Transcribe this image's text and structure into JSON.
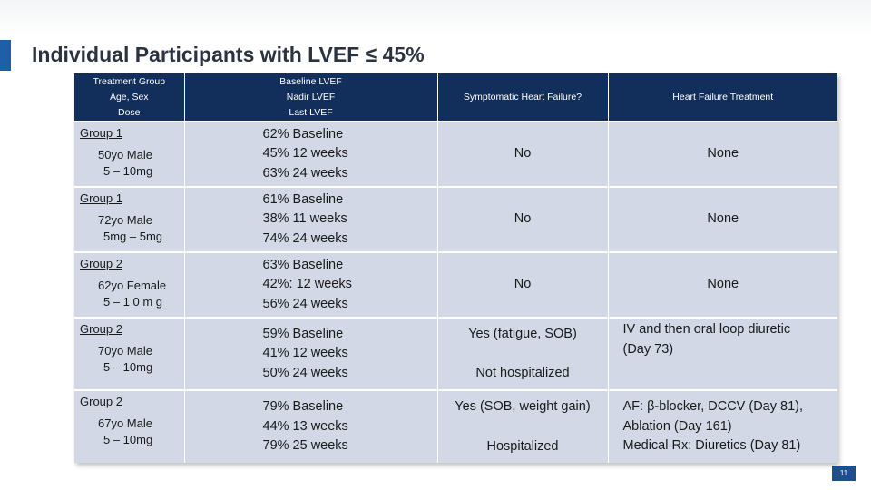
{
  "title": "Individual Participants with LVEF ≤ 45%",
  "accent_color": "#1f5fa8",
  "header_color": "#122e5a",
  "row_color": "#d2d8e5",
  "headers": {
    "col1": [
      "Treatment Group",
      "Age, Sex",
      "Dose"
    ],
    "col2": [
      "Baseline LVEF",
      "Nadir LVEF",
      "Last LVEF"
    ],
    "col3": "Symptomatic Heart Failure?",
    "col4": "Heart Failure Treatment"
  },
  "rows": [
    {
      "group": "Group 1",
      "demo": "50yo Male",
      "dose": "5 – 10mg",
      "lvef": [
        "62% Baseline",
        "45% 12 weeks",
        "63% 24 weeks"
      ],
      "symptomatic": [
        "No"
      ],
      "treatment": [
        "None"
      ]
    },
    {
      "group": "Group 1",
      "demo": "72yo Male",
      "dose": "5mg – 5mg",
      "lvef": [
        "61% Baseline",
        "38% 11 weeks",
        "74% 24 weeks"
      ],
      "symptomatic": [
        "No"
      ],
      "treatment": [
        "None"
      ]
    },
    {
      "group": "Group 2",
      "demo": "62yo Female",
      "dose": "5 – 1 0 m g",
      "lvef": [
        "63% Baseline",
        "42%: 12 weeks",
        "56% 24 weeks"
      ],
      "symptomatic": [
        "No"
      ],
      "treatment": [
        "None"
      ]
    },
    {
      "group": "Group 2",
      "demo": "70yo Male",
      "dose": "5 – 10mg",
      "lvef": [
        "59% Baseline",
        "41% 12 weeks",
        "50% 24 weeks"
      ],
      "symptomatic": [
        "Yes (fatigue, SOB)",
        "Not hospitalized"
      ],
      "treatment": [
        "IV and then oral loop diuretic",
        "(Day 73)"
      ]
    },
    {
      "group": "Group 2",
      "demo": "67yo Male",
      "dose": "5 – 10mg",
      "lvef": [
        "79% Baseline",
        "44% 13 weeks",
        "79% 25 weeks"
      ],
      "symptomatic": [
        "Yes (SOB, weight gain)",
        "Hospitalized"
      ],
      "treatment": [
        "AF: β-blocker, DCCV (Day 81),",
        "Ablation (Day 161)",
        "Medical Rx: Diuretics (Day 81)"
      ]
    }
  ],
  "page_number": "11"
}
